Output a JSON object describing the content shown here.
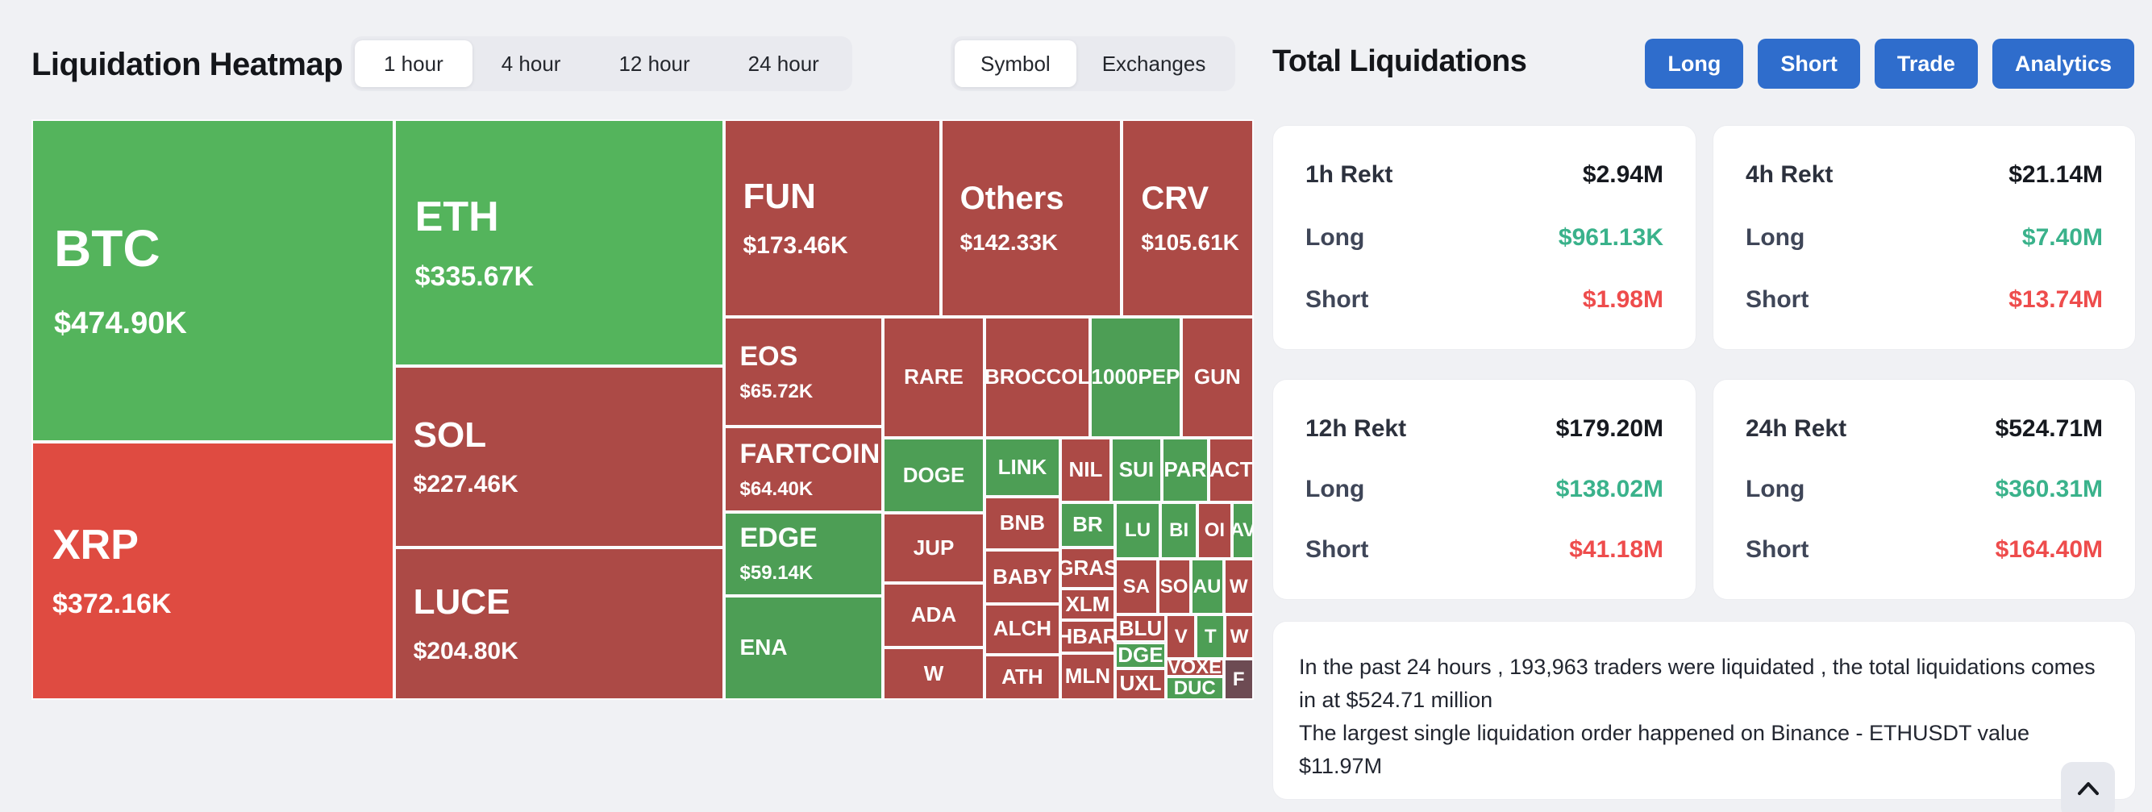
{
  "header": {
    "title": "Liquidation Heatmap",
    "time_tabs": [
      "1 hour",
      "4 hour",
      "12 hour",
      "24 hour"
    ],
    "active_time_tab": "1 hour",
    "view_tabs": [
      "Symbol",
      "Exchanges"
    ],
    "active_view_tab": "Symbol"
  },
  "panel": {
    "title": "Total Liquidations",
    "buttons": [
      "Long",
      "Short",
      "Trade",
      "Analytics"
    ],
    "row_labels": {
      "long": "Long",
      "short": "Short"
    },
    "cards": [
      {
        "label": "1h Rekt",
        "total": "$2.94M",
        "long": "$961.13K",
        "short": "$1.98M"
      },
      {
        "label": "4h Rekt",
        "total": "$21.14M",
        "long": "$7.40M",
        "short": "$13.74M"
      },
      {
        "label": "12h Rekt",
        "total": "$179.20M",
        "long": "$138.02M",
        "short": "$41.18M"
      },
      {
        "label": "24h Rekt",
        "total": "$524.71M",
        "long": "$360.31M",
        "short": "$164.40M"
      }
    ],
    "summary_line1": "In the past 24 hours , 193,963 traders were liquidated , the total liquidations comes in at $524.71 million",
    "summary_line2": "The largest single liquidation order happened on Binance - ETHUSDT value $11.97M"
  },
  "colors": {
    "green_bright": "#54b45c",
    "green": "#4d9e55",
    "red_bright": "#df4b41",
    "red": "#ac4a46",
    "dark_muted": "#6d4b53",
    "long_value": "#3ab28b",
    "short_value": "#ee4c4c",
    "button_blue": "#2f6dcc"
  },
  "icons": {
    "scroll_top": "chevron-up-icon"
  },
  "chart_data": {
    "type": "treemap",
    "title": "Liquidation Heatmap",
    "timeframe": "1 hour",
    "grouping": "Symbol",
    "cells": [
      {
        "symbol": "BTC",
        "value": "$474.90K",
        "tone": "green_bright",
        "tier": "xl",
        "x": 0,
        "y": 0,
        "w": 29.66,
        "h": 55.56
      },
      {
        "symbol": "XRP",
        "value": "$372.16K",
        "tone": "red_bright",
        "tier": "lg",
        "x": 0,
        "y": 55.56,
        "w": 29.66,
        "h": 44.44
      },
      {
        "symbol": "ETH",
        "value": "$335.67K",
        "tone": "green_bright",
        "tier": "lg",
        "x": 29.66,
        "y": 0,
        "w": 26.97,
        "h": 42.55
      },
      {
        "symbol": "SOL",
        "value": "$227.46K",
        "tone": "red",
        "tier": "md",
        "x": 29.66,
        "y": 42.55,
        "w": 26.97,
        "h": 31.21
      },
      {
        "symbol": "LUCE",
        "value": "$204.80K",
        "tone": "red",
        "tier": "md",
        "x": 29.66,
        "y": 73.76,
        "w": 26.97,
        "h": 26.24
      },
      {
        "symbol": "FUN",
        "value": "$173.46K",
        "tone": "red",
        "tier": "md",
        "x": 56.63,
        "y": 0,
        "w": 17.75,
        "h": 34.04
      },
      {
        "symbol": "Others",
        "value": "$142.33K",
        "tone": "red",
        "tier": "md2",
        "x": 74.38,
        "y": 0,
        "w": 14.83,
        "h": 34.04
      },
      {
        "symbol": "CRV",
        "value": "$105.61K",
        "tone": "red",
        "tier": "md2",
        "x": 89.21,
        "y": 0,
        "w": 10.79,
        "h": 34.04
      },
      {
        "symbol": "EOS",
        "value": "$65.72K",
        "tone": "red",
        "tier": "sm2",
        "x": 56.63,
        "y": 34.04,
        "w": 13.03,
        "h": 18.91
      },
      {
        "symbol": "FARTCOIN",
        "value": "$64.40K",
        "tone": "red",
        "tier": "sm2",
        "x": 56.63,
        "y": 52.95,
        "w": 13.03,
        "h": 14.66
      },
      {
        "symbol": "EDGE",
        "value": "$59.14K",
        "tone": "green",
        "tier": "sm2",
        "x": 56.63,
        "y": 67.61,
        "w": 13.03,
        "h": 14.42
      },
      {
        "symbol": "ENA",
        "value": "",
        "tone": "green",
        "tier": "ena",
        "x": 56.63,
        "y": 82.03,
        "w": 13.03,
        "h": 17.97
      },
      {
        "symbol": "RARE",
        "value": "",
        "tone": "red",
        "tier": "sm",
        "x": 69.66,
        "y": 34.04,
        "w": 8.31,
        "h": 20.8
      },
      {
        "symbol": "BROCCOL",
        "value": "",
        "tone": "red",
        "tier": "sm",
        "x": 77.97,
        "y": 34.04,
        "w": 8.66,
        "h": 20.8
      },
      {
        "symbol": "1000PEP",
        "value": "",
        "tone": "green",
        "tier": "sm",
        "x": 86.63,
        "y": 34.04,
        "w": 7.41,
        "h": 20.8
      },
      {
        "symbol": "GUN",
        "value": "",
        "tone": "red",
        "tier": "sm",
        "x": 94.04,
        "y": 34.04,
        "w": 5.96,
        "h": 20.8
      },
      {
        "symbol": "DOGE",
        "value": "",
        "tone": "green",
        "tier": "sm",
        "x": 69.66,
        "y": 54.84,
        "w": 8.31,
        "h": 13.0
      },
      {
        "symbol": "JUP",
        "value": "",
        "tone": "red",
        "tier": "sm",
        "x": 69.66,
        "y": 67.84,
        "w": 8.31,
        "h": 12.06
      },
      {
        "symbol": "ADA",
        "value": "",
        "tone": "red",
        "tier": "sm",
        "x": 69.66,
        "y": 79.9,
        "w": 8.31,
        "h": 11.11
      },
      {
        "symbol": "W",
        "value": "",
        "tone": "red",
        "tier": "sm",
        "x": 69.66,
        "y": 91.01,
        "w": 8.31,
        "h": 8.99
      },
      {
        "symbol": "LINK",
        "value": "",
        "tone": "green",
        "tier": "sm",
        "x": 77.97,
        "y": 54.84,
        "w": 6.19,
        "h": 10.17
      },
      {
        "symbol": "BNB",
        "value": "",
        "tone": "red",
        "tier": "sm",
        "x": 77.97,
        "y": 65.01,
        "w": 6.19,
        "h": 9.22
      },
      {
        "symbol": "BABY",
        "value": "",
        "tone": "red",
        "tier": "sm",
        "x": 77.97,
        "y": 74.23,
        "w": 6.19,
        "h": 9.22
      },
      {
        "symbol": "ALCH",
        "value": "",
        "tone": "red",
        "tier": "sm",
        "x": 77.97,
        "y": 83.45,
        "w": 6.19,
        "h": 8.75
      },
      {
        "symbol": "ATH",
        "value": "",
        "tone": "red",
        "tier": "sm",
        "x": 77.97,
        "y": 92.2,
        "w": 6.19,
        "h": 7.8
      },
      {
        "symbol": "NIL",
        "value": "",
        "tone": "red",
        "tier": "sm",
        "x": 84.16,
        "y": 54.84,
        "w": 4.16,
        "h": 11.11
      },
      {
        "symbol": "SUI",
        "value": "",
        "tone": "green",
        "tier": "sm",
        "x": 88.32,
        "y": 54.84,
        "w": 4.15,
        "h": 11.11
      },
      {
        "symbol": "PAR",
        "value": "",
        "tone": "green",
        "tier": "sm",
        "x": 92.47,
        "y": 54.84,
        "w": 3.82,
        "h": 11.11
      },
      {
        "symbol": "ACT",
        "value": "",
        "tone": "red",
        "tier": "sm",
        "x": 96.29,
        "y": 54.84,
        "w": 3.71,
        "h": 11.11
      },
      {
        "symbol": "BR",
        "value": "",
        "tone": "green",
        "tier": "sm",
        "x": 84.16,
        "y": 65.95,
        "w": 4.49,
        "h": 7.81
      },
      {
        "symbol": "GRAS",
        "value": "",
        "tone": "red",
        "tier": "sm",
        "x": 84.16,
        "y": 73.76,
        "w": 4.49,
        "h": 7.09
      },
      {
        "symbol": "XLM",
        "value": "",
        "tone": "red",
        "tier": "sm",
        "x": 84.16,
        "y": 80.85,
        "w": 4.49,
        "h": 5.44
      },
      {
        "symbol": "HBAR",
        "value": "",
        "tone": "red",
        "tier": "sm",
        "x": 84.16,
        "y": 86.29,
        "w": 4.49,
        "h": 5.67
      },
      {
        "symbol": "MLN",
        "value": "",
        "tone": "red",
        "tier": "sm",
        "x": 84.16,
        "y": 91.96,
        "w": 4.49,
        "h": 8.04
      },
      {
        "symbol": "LU",
        "value": "",
        "tone": "green",
        "tier": "xs",
        "x": 88.65,
        "y": 65.95,
        "w": 3.71,
        "h": 9.69
      },
      {
        "symbol": "BI",
        "value": "",
        "tone": "green",
        "tier": "xs",
        "x": 92.36,
        "y": 65.95,
        "w": 3.03,
        "h": 9.69
      },
      {
        "symbol": "OI",
        "value": "",
        "tone": "red",
        "tier": "xs",
        "x": 95.39,
        "y": 65.95,
        "w": 2.81,
        "h": 9.69
      },
      {
        "symbol": "AV",
        "value": "",
        "tone": "green",
        "tier": "xs",
        "x": 98.2,
        "y": 65.95,
        "w": 1.8,
        "h": 9.69
      },
      {
        "symbol": "SA",
        "value": "",
        "tone": "red",
        "tier": "xs",
        "x": 88.65,
        "y": 75.64,
        "w": 3.48,
        "h": 9.7
      },
      {
        "symbol": "SO",
        "value": "",
        "tone": "red",
        "tier": "xs",
        "x": 92.13,
        "y": 75.64,
        "w": 2.7,
        "h": 9.7
      },
      {
        "symbol": "AU",
        "value": "",
        "tone": "green",
        "tier": "xs",
        "x": 94.83,
        "y": 75.64,
        "w": 2.7,
        "h": 9.7
      },
      {
        "symbol": "W",
        "value": "",
        "tone": "red",
        "tier": "xs",
        "x": 97.53,
        "y": 75.64,
        "w": 2.47,
        "h": 9.7
      },
      {
        "symbol": "BLU",
        "value": "",
        "tone": "red",
        "tier": "sm",
        "x": 88.65,
        "y": 85.34,
        "w": 4.16,
        "h": 4.73
      },
      {
        "symbol": "DGE",
        "value": "",
        "tone": "green",
        "tier": "sm",
        "x": 88.65,
        "y": 90.07,
        "w": 4.16,
        "h": 4.49
      },
      {
        "symbol": "UXL",
        "value": "",
        "tone": "red",
        "tier": "sm",
        "x": 88.65,
        "y": 94.56,
        "w": 4.16,
        "h": 5.44
      },
      {
        "symbol": "V",
        "value": "",
        "tone": "red",
        "tier": "xs",
        "x": 92.81,
        "y": 85.34,
        "w": 2.47,
        "h": 7.57
      },
      {
        "symbol": "T",
        "value": "",
        "tone": "green",
        "tier": "xs",
        "x": 95.28,
        "y": 85.34,
        "w": 2.36,
        "h": 7.57
      },
      {
        "symbol": "W",
        "value": "",
        "tone": "red",
        "tier": "xs",
        "x": 97.64,
        "y": 85.34,
        "w": 2.36,
        "h": 7.57
      },
      {
        "symbol": "VOXE",
        "value": "",
        "tone": "red",
        "tier": "xs",
        "x": 92.81,
        "y": 92.91,
        "w": 4.72,
        "h": 3.07
      },
      {
        "symbol": "DUC",
        "value": "",
        "tone": "green",
        "tier": "xs",
        "x": 92.81,
        "y": 95.98,
        "w": 4.72,
        "h": 4.02
      },
      {
        "symbol": "F",
        "value": "",
        "tone": "dark_muted",
        "tier": "xs",
        "x": 97.53,
        "y": 92.91,
        "w": 2.47,
        "h": 7.09
      }
    ]
  }
}
